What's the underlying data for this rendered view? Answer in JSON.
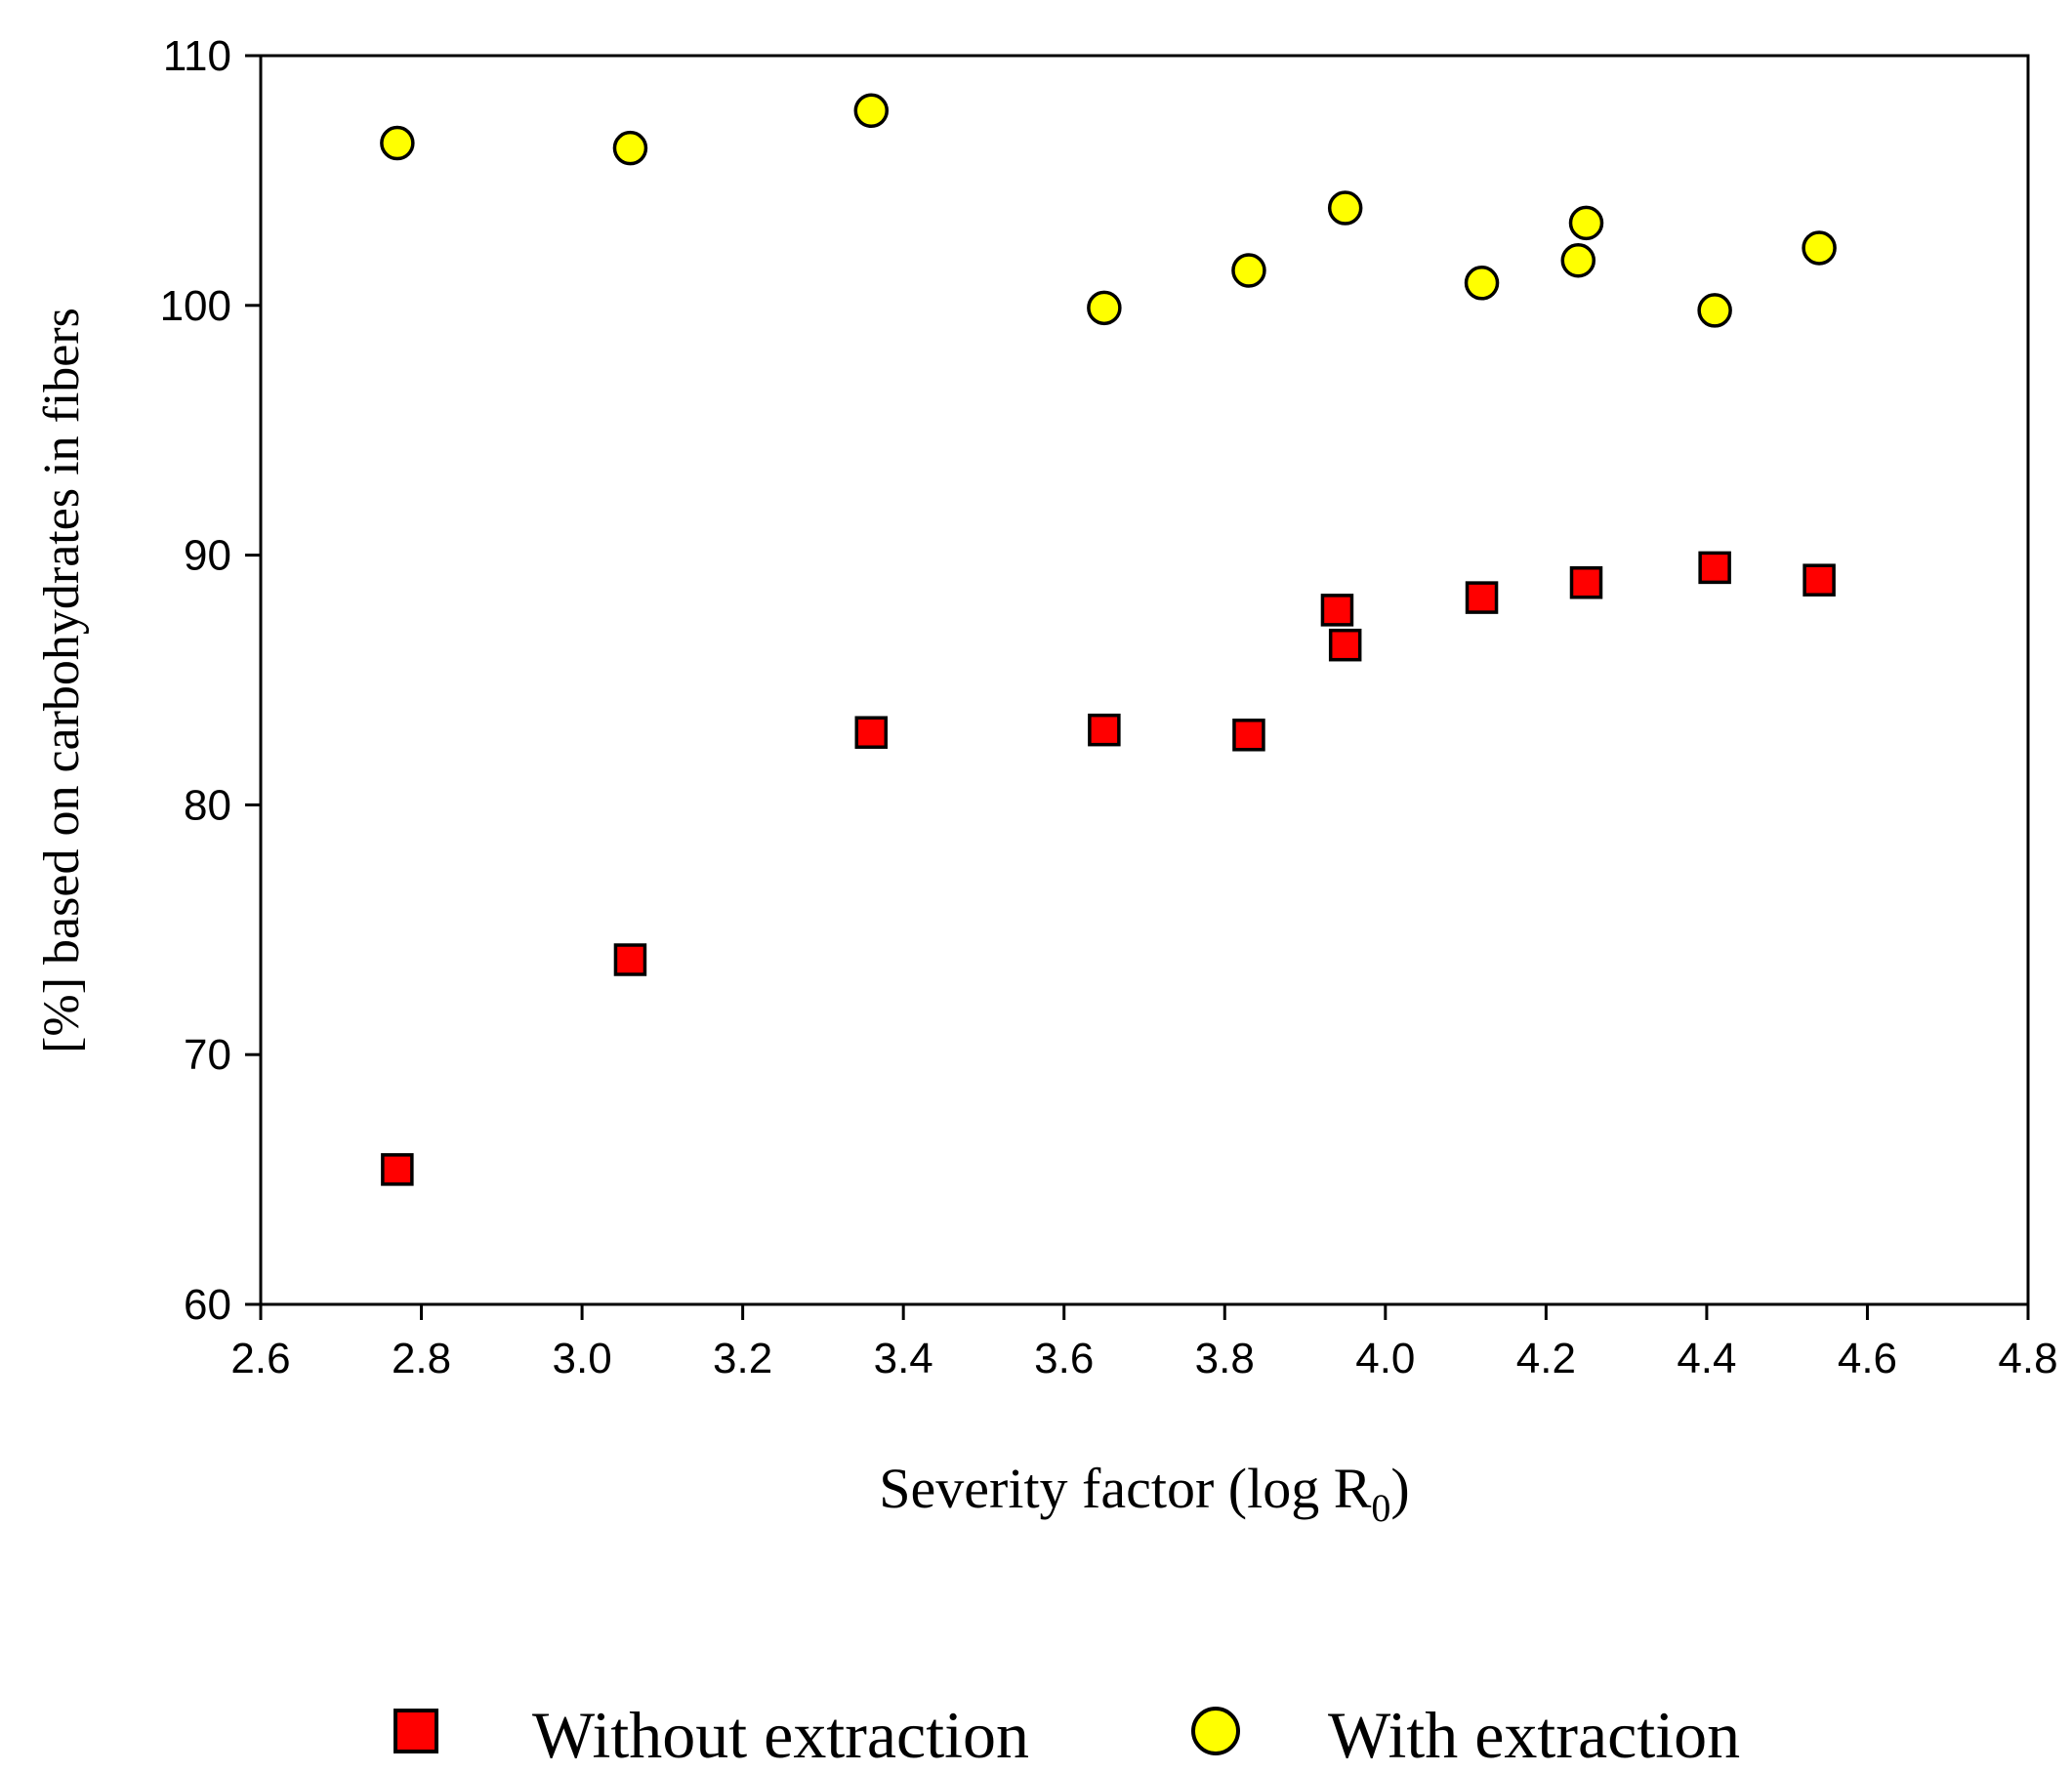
{
  "chart_data": {
    "type": "scatter",
    "title": "",
    "xlabel_main": "Severity factor (log R",
    "xlabel_sub": "0",
    "xlabel_end": ")",
    "ylabel": "[%] based on carbohydrates in fibers",
    "xlim": [
      2.6,
      4.8
    ],
    "ylim": [
      60,
      110
    ],
    "xticks": [
      "2.6",
      "2.8",
      "3.0",
      "3.2",
      "3.4",
      "3.6",
      "3.8",
      "4.0",
      "4.2",
      "4.4",
      "4.6",
      "4.8"
    ],
    "yticks": [
      "60",
      "70",
      "80",
      "90",
      "100",
      "110"
    ],
    "grid": false,
    "legend_position": "bottom",
    "series": [
      {
        "name": "Without extraction",
        "marker": "square",
        "color": "#ff0000",
        "points": [
          {
            "x": 2.77,
            "y": 65.4
          },
          {
            "x": 3.06,
            "y": 73.8
          },
          {
            "x": 3.36,
            "y": 82.9
          },
          {
            "x": 3.65,
            "y": 83.0
          },
          {
            "x": 3.83,
            "y": 82.8
          },
          {
            "x": 3.94,
            "y": 87.8
          },
          {
            "x": 3.95,
            "y": 86.4
          },
          {
            "x": 4.12,
            "y": 88.3
          },
          {
            "x": 4.25,
            "y": 88.9
          },
          {
            "x": 4.41,
            "y": 89.5
          },
          {
            "x": 4.54,
            "y": 89.0
          }
        ]
      },
      {
        "name": "With extraction",
        "marker": "circle",
        "color": "#ffff00",
        "points": [
          {
            "x": 2.77,
            "y": 106.5
          },
          {
            "x": 3.06,
            "y": 106.3
          },
          {
            "x": 3.36,
            "y": 107.8
          },
          {
            "x": 3.65,
            "y": 99.9
          },
          {
            "x": 3.83,
            "y": 101.4
          },
          {
            "x": 3.95,
            "y": 103.9
          },
          {
            "x": 4.12,
            "y": 100.9
          },
          {
            "x": 4.24,
            "y": 101.8
          },
          {
            "x": 4.25,
            "y": 103.3
          },
          {
            "x": 4.41,
            "y": 99.8
          },
          {
            "x": 4.54,
            "y": 102.3
          }
        ]
      }
    ]
  }
}
